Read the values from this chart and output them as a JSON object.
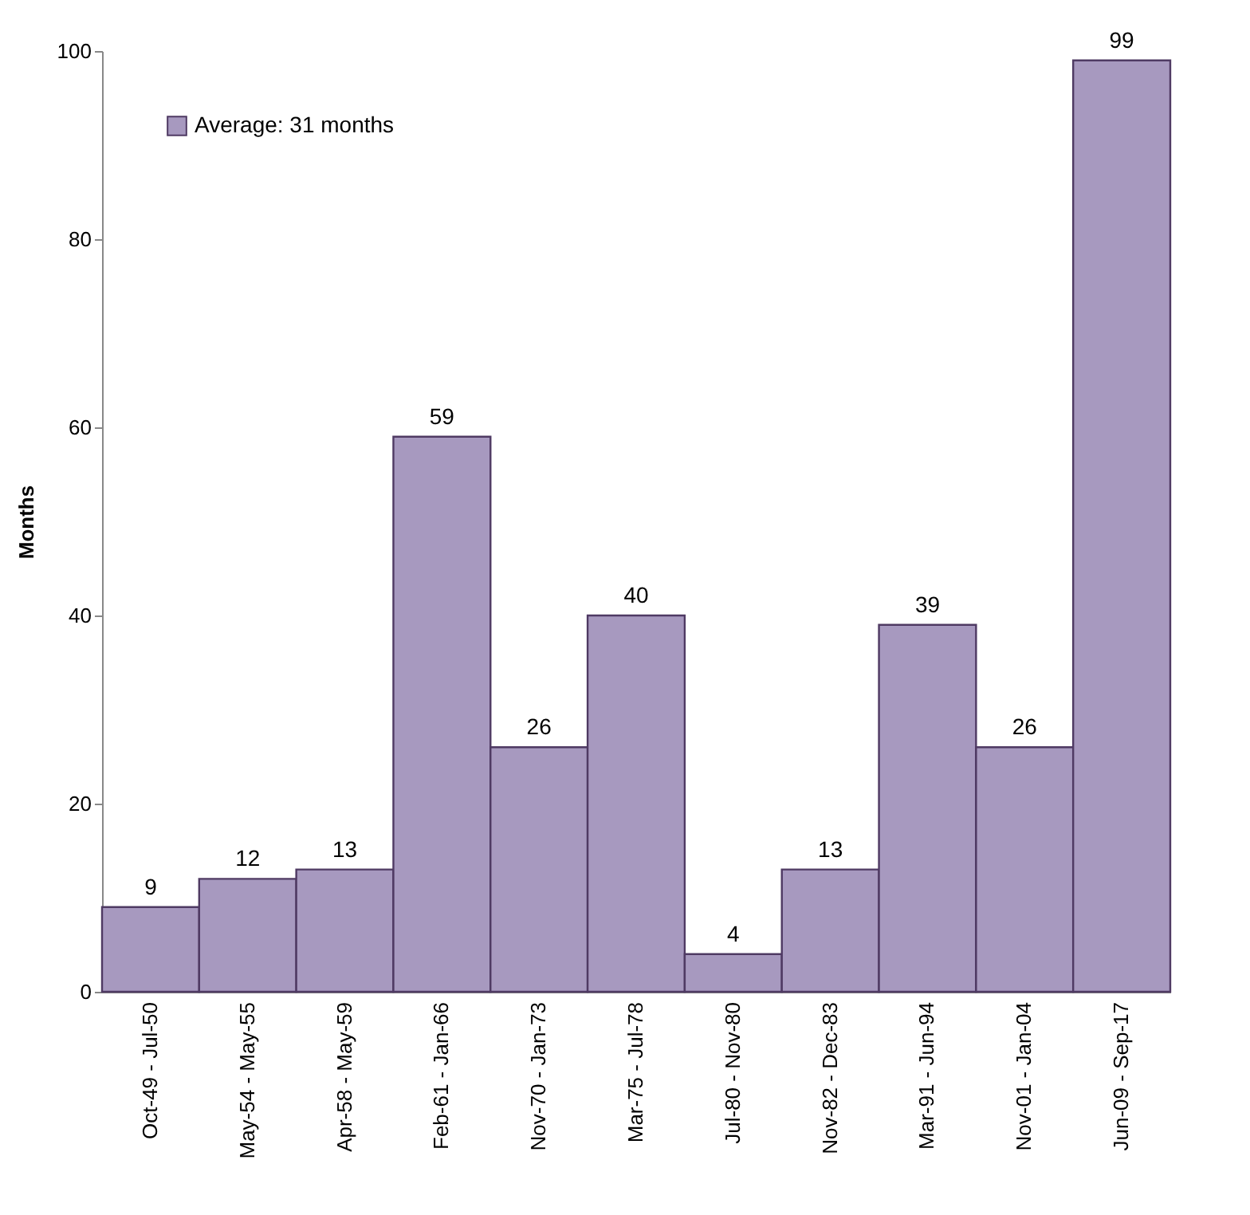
{
  "chart_data": {
    "type": "bar",
    "ylabel": "Months",
    "categories": [
      "Oct-49 - Jul-50",
      "May-54 - May-55",
      "Apr-58 - May-59",
      "Feb-61 - Jan-66",
      "Nov-70 - Jan-73",
      "Mar-75 - Jul-78",
      "Jul-80 - Nov-80",
      "Nov-82 - Dec-83",
      "Mar-91 - Jun-94",
      "Nov-01 - Jan-04",
      "Jun-09 - Sep-17"
    ],
    "series": [
      {
        "name": "Average: 31 months",
        "color": "#a799bf",
        "values": [
          9,
          12,
          13,
          59,
          26,
          40,
          4,
          13,
          39,
          26,
          99
        ]
      }
    ],
    "ylim": [
      0,
      100
    ],
    "yticks": [
      0,
      20,
      40,
      60,
      80,
      100
    ],
    "data_labels": true,
    "legend": "top left"
  }
}
